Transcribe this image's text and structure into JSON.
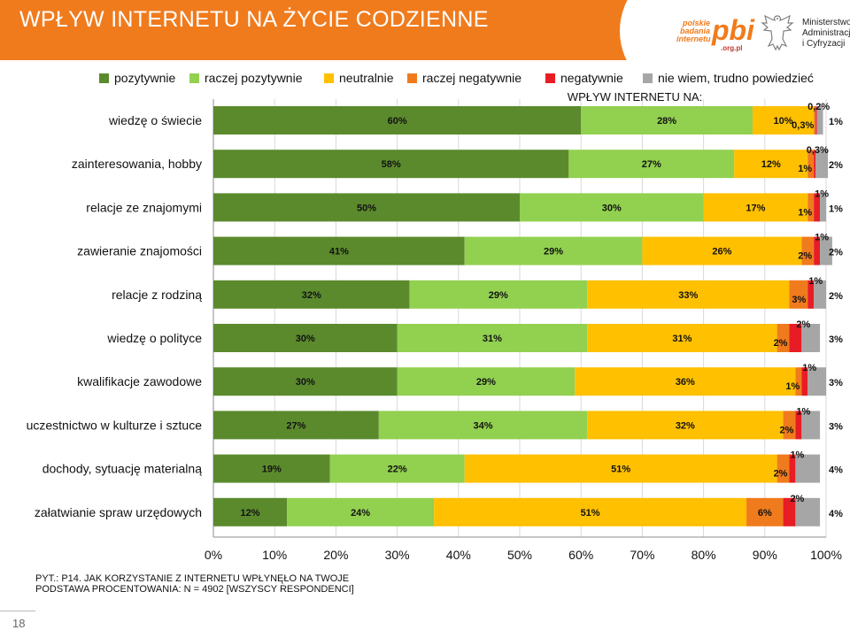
{
  "title": "WPŁYW INTERNETU NA ŻYCIE CODZIENNE",
  "logo": {
    "lines": [
      "polskie",
      "badania",
      "internetu"
    ],
    "brand": "pbi",
    "domain": ".org.pl",
    "ministry": [
      "Ministerstwo",
      "Administracji",
      "i Cyfryzacji"
    ]
  },
  "footnote": {
    "line1": "PYT.: P14. JAK KORZYSTANIE Z INTERNETU WPŁYNĘŁO NA TWOJE",
    "line2": "PODSTAWA PROCENTOWANIA: N = 4902 [WSZYSCY RESPONDENCI]"
  },
  "page_number": "18",
  "colors": {
    "header": "#f07b1d",
    "series": [
      "#5b8a2d",
      "#92d050",
      "#ffc000",
      "#f07b1d",
      "#e81c24",
      "#a6a6a6"
    ]
  },
  "chart_data": {
    "type": "bar",
    "orientation": "horizontal-stacked-100",
    "title": "WPŁYW INTERNETU NA:",
    "xlim": [
      0,
      100
    ],
    "x_ticks": [
      "0%",
      "10%",
      "20%",
      "30%",
      "40%",
      "50%",
      "60%",
      "70%",
      "80%",
      "90%",
      "100%"
    ],
    "grid": true,
    "legend_position": "top",
    "categories": [
      "wiedzę o świecie",
      "zainteresowania, hobby",
      "relacje ze znajomymi",
      "zawieranie  znajomości",
      "relacje z rodziną",
      "wiedzę o polityce",
      "kwalifikacje zawodowe",
      "uczestnictwo w kulturze i sztuce",
      "dochody, sytuację materialną",
      "załatwianie spraw urzędowych"
    ],
    "series": [
      {
        "name": "pozytywnie",
        "values": [
          60,
          58,
          50,
          41,
          32,
          30,
          30,
          27,
          19,
          12
        ],
        "labels": [
          "60%",
          "58%",
          "50%",
          "41%",
          "32%",
          "30%",
          "30%",
          "27%",
          "19%",
          "12%"
        ]
      },
      {
        "name": "raczej pozytywnie",
        "values": [
          28,
          27,
          30,
          29,
          29,
          31,
          29,
          34,
          22,
          24
        ],
        "labels": [
          "28%",
          "27%",
          "30%",
          "29%",
          "29%",
          "31%",
          "29%",
          "34%",
          "22%",
          "24%"
        ]
      },
      {
        "name": "neutralnie",
        "values": [
          10,
          12,
          17,
          26,
          33,
          31,
          36,
          32,
          51,
          51
        ],
        "labels": [
          "10%",
          "12%",
          "17%",
          "26%",
          "33%",
          "31%",
          "36%",
          "32%",
          "51%",
          "51%"
        ]
      },
      {
        "name": "raczej negatywnie",
        "values": [
          0.3,
          1,
          1,
          2,
          3,
          2,
          1,
          2,
          2,
          6
        ],
        "labels": [
          "0,3%",
          "1%",
          "1%",
          "2%",
          "3%",
          "2%",
          "1%",
          "2%",
          "2%",
          "6%"
        ]
      },
      {
        "name": "negatywnie",
        "values": [
          0.2,
          0.3,
          1,
          1,
          1,
          2,
          1,
          1,
          1,
          2
        ],
        "labels": [
          "0,2%",
          "0,3%",
          "1%",
          "1%",
          "1%",
          "2%",
          "1%",
          "1%",
          "1%",
          "2%"
        ]
      },
      {
        "name": "nie wiem, trudno powiedzieć",
        "values": [
          1,
          2,
          1,
          2,
          2,
          3,
          3,
          3,
          4,
          4
        ],
        "labels": [
          "1%",
          "2%",
          "1%",
          "2%",
          "2%",
          "3%",
          "3%",
          "3%",
          "4%",
          "4%"
        ]
      }
    ]
  }
}
